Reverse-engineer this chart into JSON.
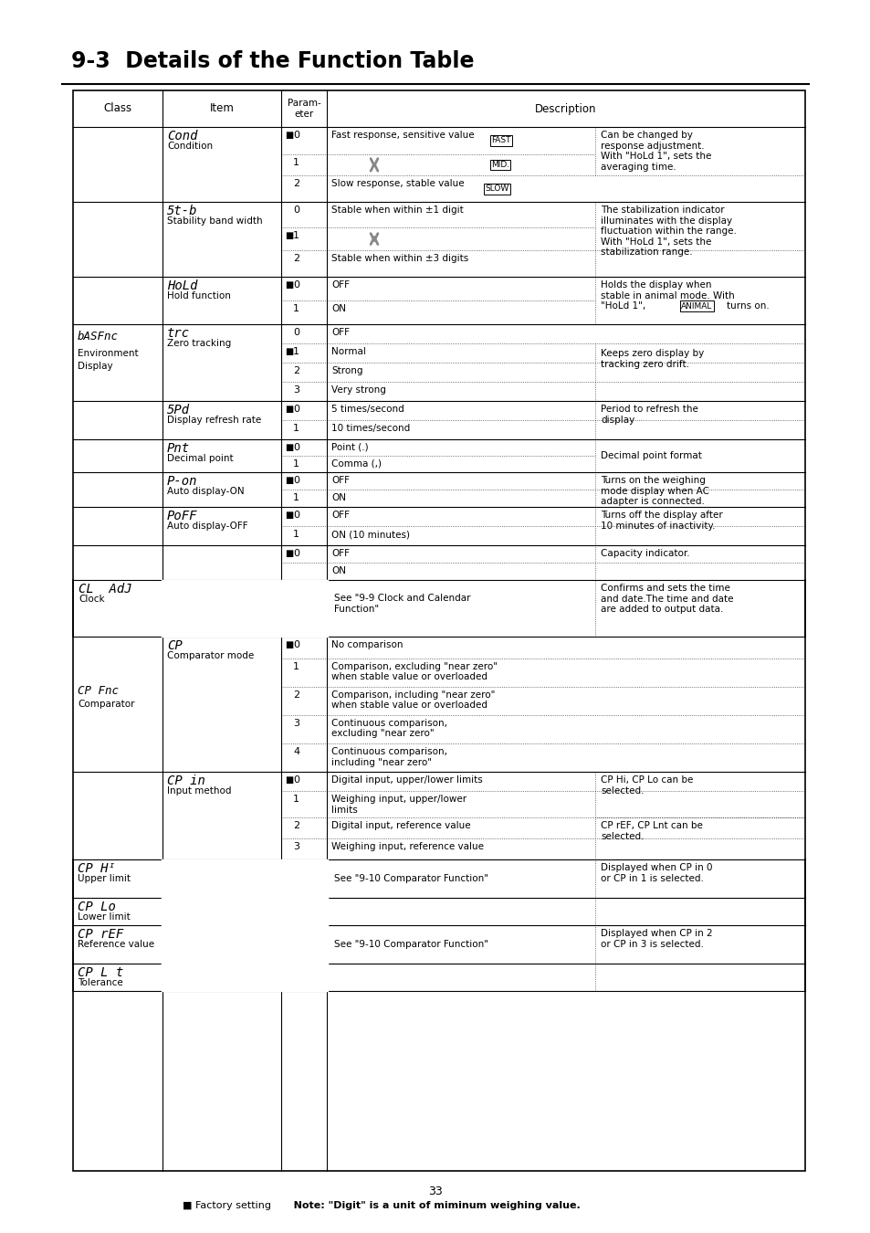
{
  "title": "9-3  Details of the Function Table",
  "page_number": "33",
  "footer_note": "Note: \"Digit\" is a unit of miminum weighing value.",
  "background_color": "#ffffff",
  "text_color": "#000000"
}
